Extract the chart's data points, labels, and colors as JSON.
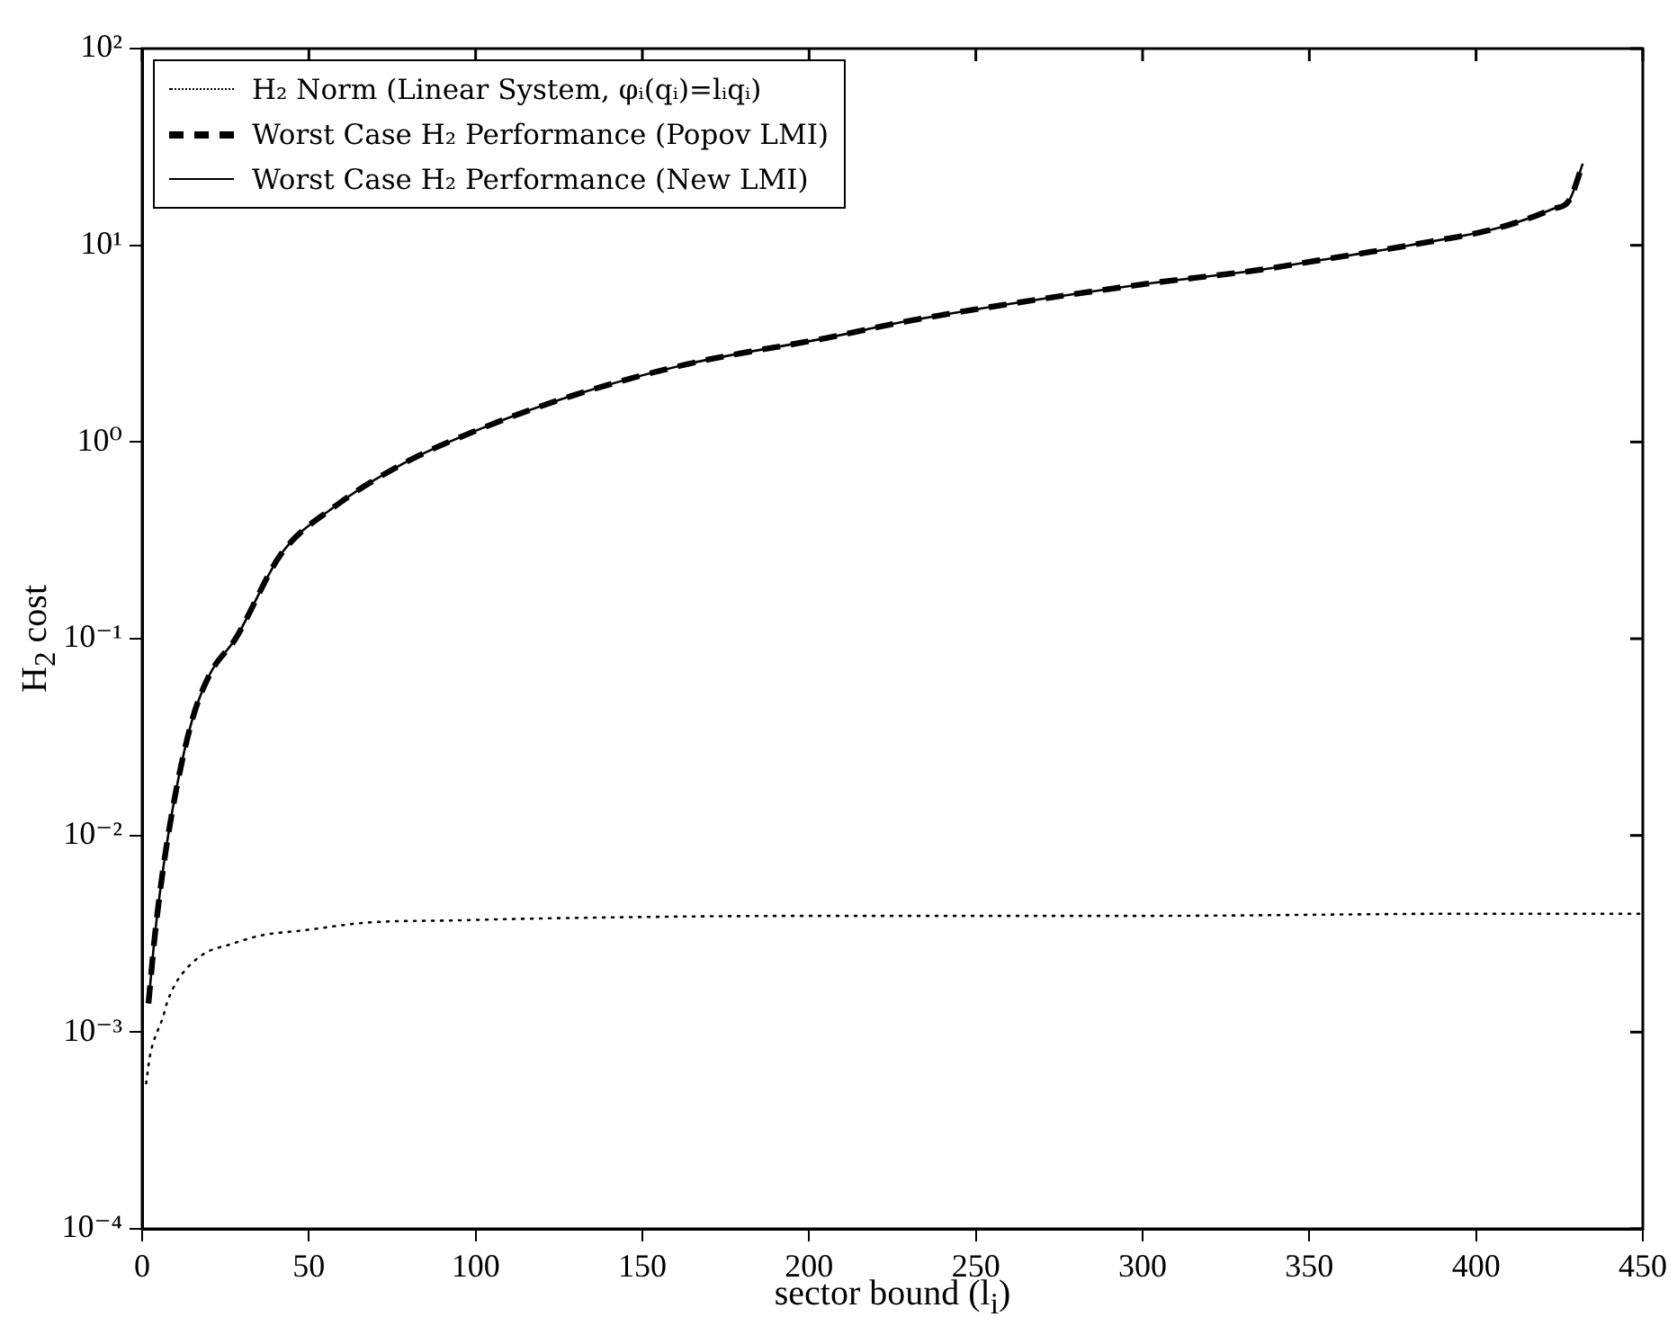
{
  "chart_data": {
    "type": "line",
    "xlabel": "sector bound (l$_{i}$)",
    "ylabel": "H$_{2}$ cost",
    "log": "y",
    "xlim": [
      0,
      450
    ],
    "xticks": [
      0,
      50,
      100,
      150,
      200,
      250,
      300,
      350,
      400,
      450
    ],
    "ylim": [
      0.0001,
      100
    ],
    "yticks": [
      {
        "value": 0.0001,
        "label": "10⁻⁴"
      },
      {
        "value": 0.001,
        "label": "10⁻³"
      },
      {
        "value": 0.01,
        "label": "10⁻²"
      },
      {
        "value": 0.1,
        "label": "10⁻¹"
      },
      {
        "value": 1,
        "label": "10⁰"
      },
      {
        "value": 10,
        "label": "10¹"
      },
      {
        "value": 100,
        "label": "10²"
      }
    ],
    "legend": "top left",
    "marker": "none",
    "grid": false,
    "series": [
      {
        "name": "H₂ Norm (Linear System, φᵢ(qᵢ)=lᵢqᵢ)",
        "color": "#000000",
        "line_style": "dotted",
        "x": [
          1.2,
          2.3,
          3.2,
          6.3,
          7.4,
          9.5,
          12.2,
          18.5,
          26.6,
          35.6,
          49,
          67,
          94,
          126,
          200,
          300,
          400,
          450
        ],
        "values": [
          0.00055,
          0.00075,
          0.00087,
          0.0012,
          0.0014,
          0.0017,
          0.002,
          0.0025,
          0.0028,
          0.0031,
          0.0033,
          0.0036,
          0.0037,
          0.0038,
          0.0039,
          0.0039,
          0.004,
          0.004
        ]
      },
      {
        "name": "Worst Case H₂ Performance (Popov LMI)",
        "color": "#000000",
        "line_style": "dashed",
        "x": [
          1.9,
          3.9,
          7.8,
          14.5,
          20.3,
          28,
          41.7,
          57,
          78.5,
          100,
          129,
          164,
          206,
          229,
          299,
          335,
          353,
          380,
          407,
          423,
          428,
          432
        ],
        "values": [
          0.0014,
          0.0032,
          0.01,
          0.036,
          0.066,
          0.1,
          0.27,
          0.46,
          0.78,
          1.14,
          1.72,
          2.5,
          3.4,
          4.1,
          6.3,
          7.5,
          8.4,
          10,
          12.3,
          15.3,
          17,
          26
        ]
      },
      {
        "name": "Worst Case H₂ Performance (New LMI)",
        "color": "#000000",
        "line_style": "solid",
        "x": [
          1.9,
          3.9,
          7.8,
          14.5,
          20.3,
          28,
          41.7,
          57,
          78.5,
          100,
          129,
          164,
          206,
          229,
          299,
          335,
          353,
          380,
          407,
          423,
          428,
          432
        ],
        "values": [
          0.0014,
          0.0032,
          0.01,
          0.036,
          0.066,
          0.1,
          0.27,
          0.46,
          0.78,
          1.14,
          1.72,
          2.5,
          3.4,
          4.1,
          6.3,
          7.5,
          8.4,
          10,
          12.3,
          15.3,
          17,
          26
        ]
      }
    ]
  }
}
